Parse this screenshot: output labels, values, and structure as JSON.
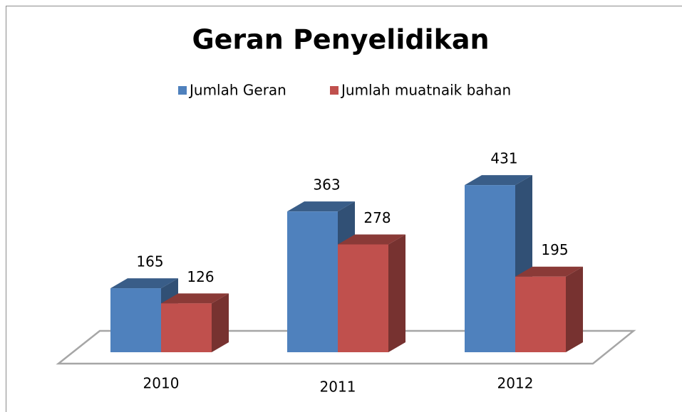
{
  "chart_data": {
    "type": "bar3d",
    "title": "Geran Penyelidikan",
    "categories": [
      "2010",
      "2011",
      "2012"
    ],
    "series": [
      {
        "name": "Jumlah Geran",
        "color": "#4f81bd",
        "values": [
          165,
          363,
          431
        ]
      },
      {
        "name": "Jumlah muatnaik bahan",
        "color": "#c0504d",
        "values": [
          126,
          278,
          195
        ]
      }
    ]
  }
}
